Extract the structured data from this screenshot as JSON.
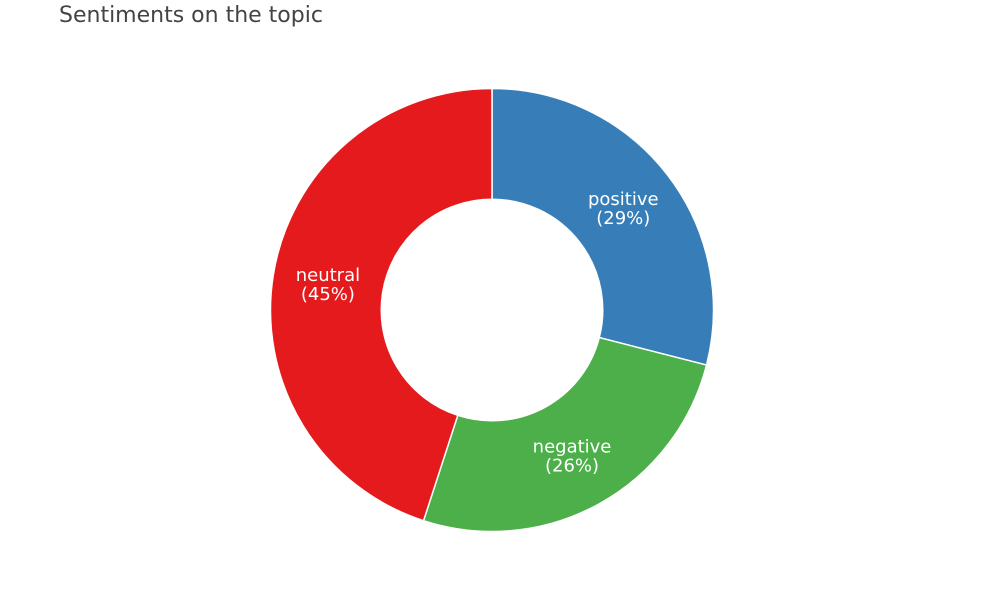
{
  "chart_data": {
    "type": "pie",
    "title": "Sentiments on the topic",
    "hole": 0.5,
    "slices": [
      {
        "label": "positive",
        "value": 29,
        "pct_text": "(29%)",
        "color": "#377eb8"
      },
      {
        "label": "negative",
        "value": 26,
        "pct_text": "(26%)",
        "color": "#4daf4a"
      },
      {
        "label": "neutral",
        "value": 45,
        "pct_text": "(45%)",
        "color": "#e41a1c"
      }
    ]
  }
}
